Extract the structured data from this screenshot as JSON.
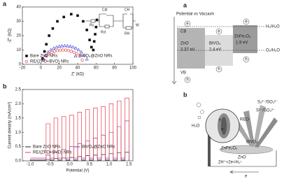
{
  "chart_data": [
    {
      "type": "scatter",
      "label": "a",
      "x_label": "Z' (kΩ)",
      "y_label": "-Z'' (kΩ)",
      "xlim": [
        -20,
        100
      ],
      "xticks": [
        -20,
        0,
        20,
        40,
        60,
        80,
        100
      ],
      "ylim": [
        0,
        40
      ],
      "yticks": [
        0,
        10,
        20,
        30,
        40
      ],
      "circuit_labels": [
        "Cdl",
        "CH",
        "Rs",
        "Rct",
        "RH",
        "W"
      ],
      "series": [
        {
          "name": "Bare ZnO NRs",
          "color": "#111111",
          "marker": "square",
          "x": [
            2,
            4,
            6,
            9,
            13,
            18,
            25,
            33,
            40,
            46,
            50,
            53,
            55,
            57,
            58,
            59,
            60,
            61
          ],
          "values": [
            4,
            9,
            14,
            20,
            25,
            30,
            33,
            35,
            34,
            30,
            24,
            17,
            12,
            10,
            16,
            21,
            26,
            31
          ]
        },
        {
          "name": "BiVO₄@ZnO NRs",
          "color": "#3a3ad0",
          "marker": "triangle",
          "x": [
            3,
            5,
            8,
            11,
            14,
            17,
            20,
            23,
            26,
            29,
            32,
            35,
            38,
            41,
            44,
            47,
            50
          ],
          "values": [
            3.7,
            6.3,
            8.6,
            10.1,
            11.3,
            12.0,
            12.6,
            12.9,
            13,
            12.9,
            12.6,
            12.0,
            11.3,
            10.1,
            8.6,
            6.3,
            3.7
          ]
        },
        {
          "name": "RE/(ZFO+BVO) NRs",
          "color": "#e03030",
          "marker": "circle",
          "x": [
            3,
            6,
            9,
            12,
            15,
            18,
            21,
            24,
            27,
            30,
            33,
            36,
            39,
            42,
            45
          ],
          "values": [
            3.0,
            5.8,
            7.3,
            8.4,
            9.1,
            9.6,
            9.9,
            10,
            9.9,
            9.6,
            9.1,
            8.4,
            7.3,
            5.8,
            3.0
          ]
        }
      ]
    },
    {
      "type": "line",
      "label": "b",
      "x_label": "Potential (V)",
      "y_label": "Current density (mA/cm²)",
      "xlim": [
        -1.2,
        1.6
      ],
      "xticks": [
        {
          "value": -1.0,
          "label": "-1.0"
        },
        -0.5,
        {
          "value": 0.0,
          "label": "0.0"
        },
        0.5,
        {
          "value": 1.0,
          "label": "1.0"
        },
        1.5
      ],
      "ylim": [
        0,
        2.5
      ],
      "yticks": [
        {
          "value": 0,
          "label": "0.0"
        },
        0.5,
        {
          "value": 1,
          "label": "1.0"
        },
        1.5,
        {
          "value": 2,
          "label": "2.0"
        },
        2.5
      ],
      "x": [
        -1.0,
        -0.6,
        -0.6,
        -0.5,
        -0.5,
        -0.4,
        -0.4,
        -0.3,
        -0.3,
        -0.2,
        -0.2,
        -0.1,
        -0.1,
        0.0,
        0.0,
        0.1,
        0.1,
        0.2,
        0.2,
        0.3,
        0.3,
        0.4,
        0.4,
        0.5,
        0.5,
        0.6,
        0.6,
        0.7,
        0.7,
        0.8,
        0.8,
        0.9,
        0.9,
        1.0,
        1.0,
        1.1,
        1.1,
        1.2,
        1.2,
        1.3,
        1.3,
        1.4,
        1.4,
        1.5,
        1.5
      ],
      "series": [
        {
          "name": "Bare ZnO NRs",
          "color": "#222222",
          "values": [
            0.02,
            0.02,
            0.05,
            0.05,
            0.02,
            0.02,
            0.08,
            0.08,
            0.02,
            0.02,
            0.1,
            0.1,
            0.02,
            0.02,
            0.12,
            0.12,
            0.02,
            0.02,
            0.15,
            0.15,
            0.02,
            0.02,
            0.18,
            0.18,
            0.02,
            0.02,
            0.2,
            0.2,
            0.02,
            0.02,
            0.22,
            0.22,
            0.02,
            0.02,
            0.25,
            0.25,
            0.02,
            0.02,
            0.28,
            0.28,
            0.02,
            0.02,
            0.3,
            0.3,
            0.02
          ]
        },
        {
          "name": "BiVO₄@ZnO NRs",
          "color": "#7b3fa0",
          "values": [
            0.05,
            0.05,
            0.2,
            0.2,
            0.05,
            0.05,
            0.3,
            0.3,
            0.05,
            0.05,
            0.4,
            0.4,
            0.05,
            0.05,
            0.5,
            0.5,
            0.05,
            0.05,
            0.6,
            0.6,
            0.05,
            0.05,
            0.7,
            0.7,
            0.05,
            0.05,
            0.8,
            0.8,
            0.05,
            0.05,
            0.9,
            0.9,
            0.05,
            0.05,
            1.0,
            1.0,
            0.05,
            0.05,
            1.2,
            1.2,
            0.05,
            0.05,
            1.4,
            1.4,
            0.05
          ]
        },
        {
          "name": "RE/(ZFO+BVO) NRs",
          "color": "#e8394a",
          "values": [
            0.1,
            0.1,
            1.3,
            1.3,
            0.1,
            0.1,
            1.5,
            1.5,
            0.1,
            0.1,
            1.55,
            1.55,
            0.1,
            0.1,
            1.6,
            1.6,
            0.1,
            0.1,
            1.7,
            1.7,
            0.1,
            0.1,
            1.8,
            1.8,
            0.1,
            0.1,
            1.85,
            1.85,
            0.1,
            0.1,
            1.9,
            1.9,
            0.1,
            0.1,
            2.0,
            2.0,
            0.1,
            0.1,
            2.1,
            2.1,
            0.1,
            0.1,
            2.2,
            2.2,
            0.1
          ]
        }
      ]
    }
  ],
  "diagrams": {
    "band": {
      "label": "a",
      "axis": "Potential vs Vacuum",
      "cb": "CB",
      "vb": "VB",
      "materials": [
        {
          "name": "ZnO",
          "gap": "3.37 eV"
        },
        {
          "name": "BiVO₄",
          "gap": "2.4 eV"
        },
        {
          "name": "ZnFe₂O₄",
          "gap": "1.9 eV"
        }
      ],
      "levels": [
        "H₂/H₂O",
        "O₂/H₂O"
      ],
      "electron": "e",
      "hole": "h"
    },
    "scheme": {
      "label": "b",
      "redox": [
        "S₂²⁻/SO₃²⁻",
        "S²⁻/SO₃²⁻"
      ],
      "reo": "REO",
      "hole": "h",
      "electron": "e",
      "zfo": "ZnFe₂O₄",
      "bvo": "BiVO₄",
      "zno": "ZnO",
      "water": "H₂O",
      "reaction": "2H⁺+2e=H₂↑",
      "circuit_e": "e"
    }
  }
}
